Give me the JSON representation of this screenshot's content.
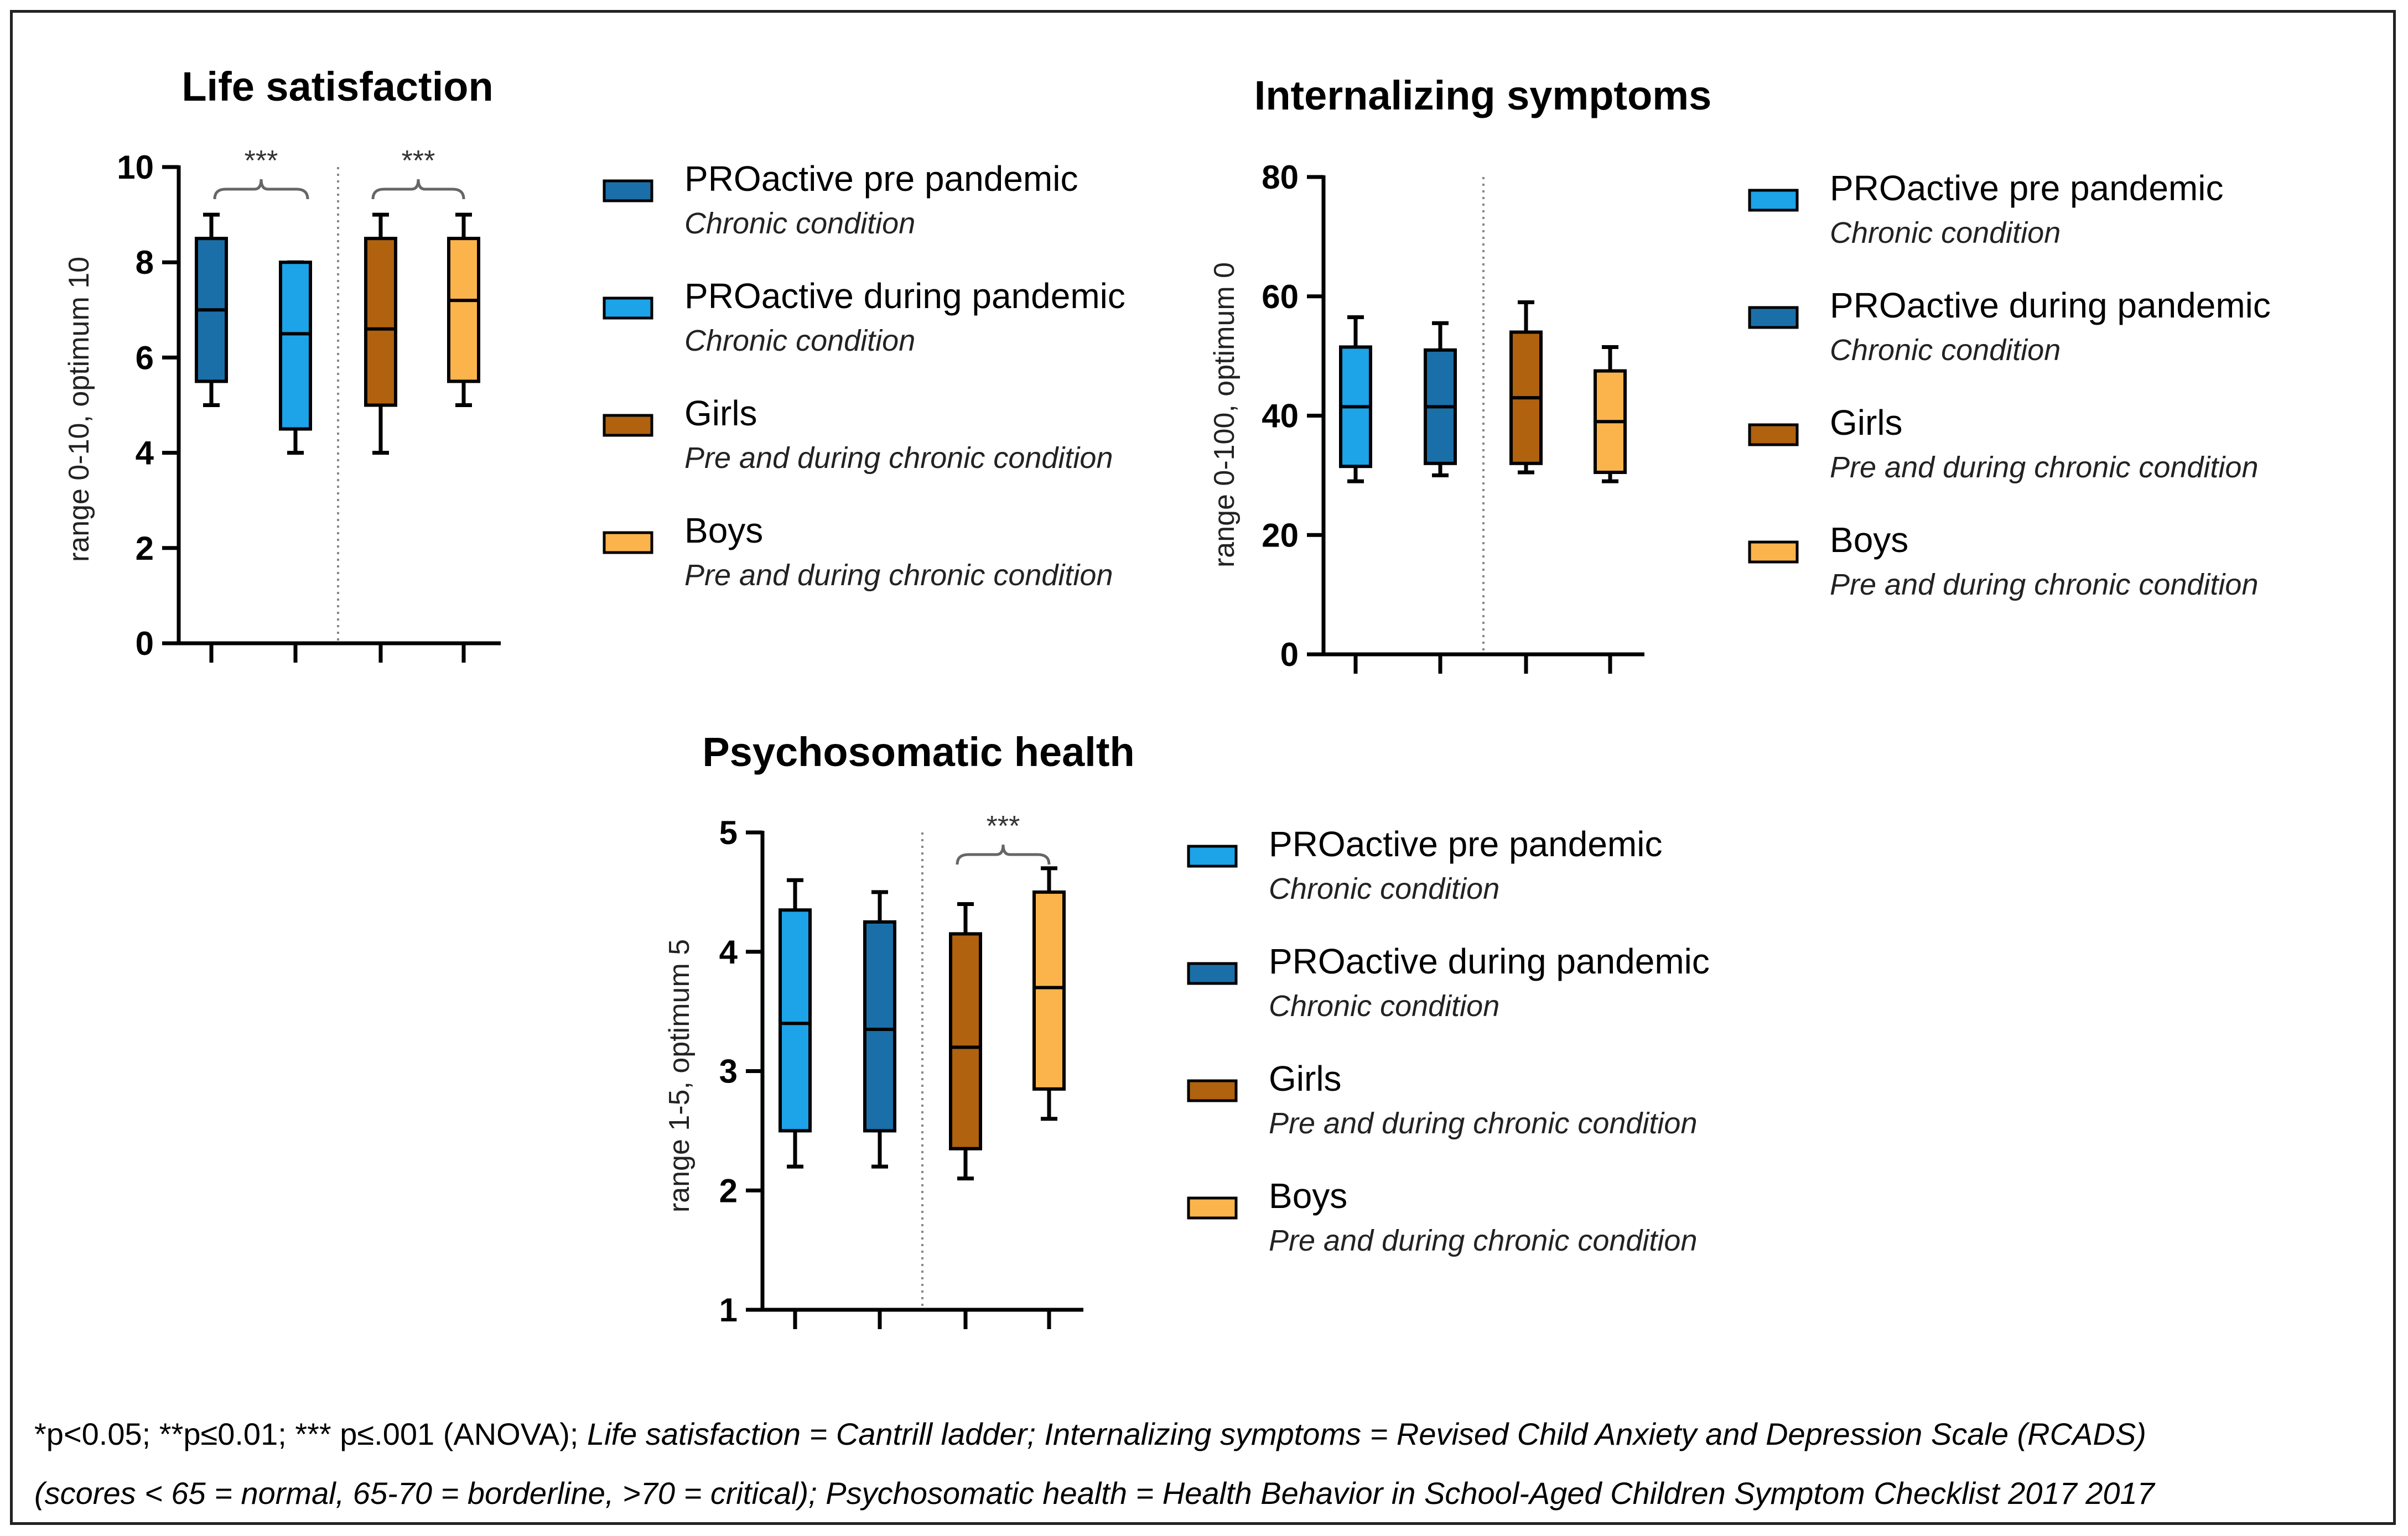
{
  "charts": {
    "life": {
      "title": "Life satisfaction",
      "ylabel": "range 0-10, optimum 10",
      "ylim": [
        0,
        10
      ],
      "yticks": [
        "0",
        "2",
        "4",
        "6",
        "8",
        "10"
      ],
      "significance": [
        "***",
        "***"
      ],
      "legend": [
        {
          "label": "PROactive pre pandemic",
          "sub": "Chronic condition",
          "color": "#1b6fa8"
        },
        {
          "label": "PROactive during pandemic",
          "sub": "Chronic condition",
          "color": "#1ca3e8"
        },
        {
          "label": "Girls",
          "sub": "Pre and during chronic condition",
          "color": "#b0620f"
        },
        {
          "label": "Boys",
          "sub": "Pre and during chronic condition",
          "color": "#fbb44c"
        }
      ]
    },
    "internal": {
      "title": "Internalizing symptoms",
      "ylabel": "range 0-100, optimum 0",
      "ylim": [
        0,
        80
      ],
      "yticks": [
        "0",
        "20",
        "40",
        "60",
        "80"
      ],
      "legend": [
        {
          "label": "PROactive pre pandemic",
          "sub": "Chronic condition",
          "color": "#1ca3e8"
        },
        {
          "label": "PROactive during pandemic",
          "sub": "Chronic condition",
          "color": "#1b6fa8"
        },
        {
          "label": "Girls",
          "sub": "Pre and during chronic condition",
          "color": "#b0620f"
        },
        {
          "label": "Boys",
          "sub": "Pre and during chronic condition",
          "color": "#fbb44c"
        }
      ]
    },
    "psycho": {
      "title": "Psychosomatic health",
      "ylabel": "range 1-5, optimum 5",
      "ylim": [
        1,
        5
      ],
      "yticks": [
        "1",
        "2",
        "3",
        "4",
        "5"
      ],
      "significance": [
        "***"
      ],
      "legend": [
        {
          "label": "PROactive pre pandemic",
          "sub": "Chronic condition",
          "color": "#1ca3e8"
        },
        {
          "label": "PROactive during pandemic",
          "sub": "Chronic condition",
          "color": "#1b6fa8"
        },
        {
          "label": "Girls",
          "sub": "Pre and during chronic condition",
          "color": "#b0620f"
        },
        {
          "label": "Boys",
          "sub": "Pre and during chronic condition",
          "color": "#fbb44c"
        }
      ]
    }
  },
  "chart_data": [
    {
      "type": "box",
      "title": "Life satisfaction",
      "ylabel": "range 0-10, optimum 10",
      "ylim": [
        0,
        10
      ],
      "groups": [
        {
          "name": "PROactive pre pandemic",
          "min": 5,
          "q1": 5.5,
          "median": 7,
          "q3": 8.5,
          "max": 9
        },
        {
          "name": "PROactive during pandemic",
          "min": 4,
          "q1": 4.5,
          "median": 6.5,
          "q3": 8,
          "max": 8
        },
        {
          "name": "Girls",
          "min": 4,
          "q1": 5,
          "median": 6.6,
          "q3": 8.5,
          "max": 9
        },
        {
          "name": "Boys",
          "min": 5,
          "q1": 5.5,
          "median": 7.2,
          "q3": 8.5,
          "max": 9
        }
      ]
    },
    {
      "type": "box",
      "title": "Internalizing symptoms",
      "ylabel": "range 0-100, optimum 0",
      "ylim": [
        0,
        80
      ],
      "groups": [
        {
          "name": "PROactive pre pandemic",
          "min": 29,
          "q1": 31.5,
          "median": 41.5,
          "q3": 51.5,
          "max": 56.5
        },
        {
          "name": "PROactive during pandemic",
          "min": 30,
          "q1": 32,
          "median": 41.5,
          "q3": 51,
          "max": 55.5
        },
        {
          "name": "Girls",
          "min": 30.5,
          "q1": 32,
          "median": 43,
          "q3": 54,
          "max": 59
        },
        {
          "name": "Boys",
          "min": 29,
          "q1": 30.5,
          "median": 39,
          "q3": 47.5,
          "max": 51.5
        }
      ]
    },
    {
      "type": "box",
      "title": "Psychosomatic health",
      "ylabel": "range 1-5, optimum 5",
      "ylim": [
        1,
        5
      ],
      "groups": [
        {
          "name": "PROactive pre pandemic",
          "min": 2.2,
          "q1": 2.5,
          "median": 3.4,
          "q3": 4.35,
          "max": 4.6
        },
        {
          "name": "PROactive during pandemic",
          "min": 2.2,
          "q1": 2.5,
          "median": 3.35,
          "q3": 4.25,
          "max": 4.5
        },
        {
          "name": "Girls",
          "min": 2.1,
          "q1": 2.35,
          "median": 3.2,
          "q3": 4.15,
          "max": 4.4
        },
        {
          "name": "Boys",
          "min": 2.6,
          "q1": 2.85,
          "median": 3.7,
          "q3": 4.5,
          "max": 4.7
        }
      ]
    }
  ],
  "footnote": {
    "line1_plain": "*p<0.05; **p≤0.01; *** p≤.001 (ANOVA); ",
    "line1_italic": "Life satisfaction = Cantrill ladder; Internalizing symptoms = Revised Child Anxiety and Depression Scale (RCADS)",
    "line2_italic": "(scores < 65 = normal, 65-70 = borderline, >70 = critical); Psychosomatic health = Health Behavior in School-Aged Children Symptom Checklist 2017 2017"
  }
}
